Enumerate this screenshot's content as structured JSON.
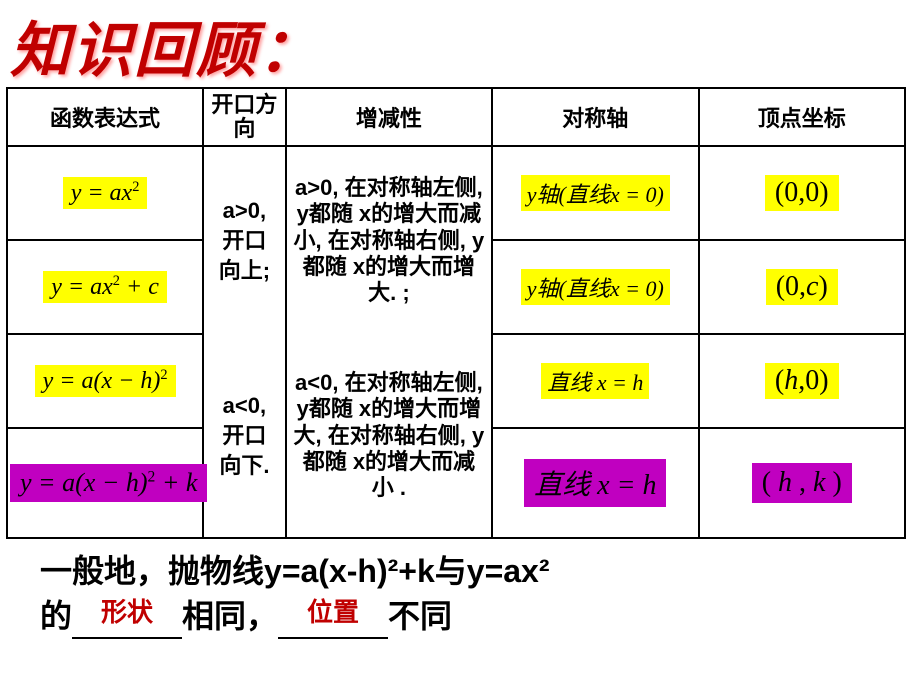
{
  "title": "知识回顾：",
  "headers": {
    "col1": "函数表达式",
    "col2": "开口方向",
    "col3": "增减性",
    "col4": "对称轴",
    "col5": "顶点坐标"
  },
  "direction": {
    "pos": "a>0,\n开口\n向上;",
    "neg": "a<0,\n开口\n向下."
  },
  "monotone": {
    "pos": "a>0, 在对称轴左侧, y都随 x的增大而减小, 在对称轴右侧, y都随  x的增大而增大. ;",
    "neg": "a<0, 在对称轴左侧, y都随 x的增大而增大, 在对称轴右侧, y都随  x的增大而减小  ."
  },
  "rows": [
    {
      "expr_html": "<span class='it'>y</span> = <span class='it'>a</span><span class='it'>x</span><sup>2</sup>",
      "axis_html": "<span class='it'>y</span>轴(直线<span class='it'>x</span> = 0)",
      "vertex_html": "(0,0)"
    },
    {
      "expr_html": "<span class='it'>y</span> = <span class='it'>a</span><span class='it'>x</span><sup>2</sup> + <span class='it'>c</span>",
      "axis_html": "<span class='it'>y</span>轴(直线<span class='it'>x</span> = 0)",
      "vertex_html": "(0,<span class='it'>c</span>)"
    },
    {
      "expr_html": "<span class='it'>y</span> = <span class='it'>a</span>(<span class='it'>x</span> − <span class='it'>h</span>)<sup>2</sup>",
      "axis_html": "直线 <span class='it'>x</span> = <span class='it'>h</span>",
      "vertex_html": "(<span class='it'>h</span>,0)"
    },
    {
      "expr_html": "<span class='it'>y</span> = <span class='it'>a</span>(<span class='it'>x</span> − <span class='it'>h</span>)<sup>2</sup> + <span class='it'>k</span>",
      "axis_html": "直线 <span class='it'>x</span> = <span class='it'>h</span>",
      "vertex_html": "( <span class='it'>h</span> , <span class='it'>k</span> )"
    }
  ],
  "row_styles": {
    "expr": [
      "hl-yellow",
      "hl-yellow",
      "hl-yellow",
      "hl-magenta"
    ],
    "axis": [
      "axis-yellow",
      "axis-yellow",
      "axis-yellow",
      "axis-magenta"
    ],
    "vertex": [
      "coord-yellow",
      "coord-yellow",
      "coord-yellow",
      "coord-magenta"
    ]
  },
  "bottom": {
    "line1_pre": "一般地，抛物线",
    "line1_formula": "y=a(x-h)²+k",
    "line1_mid": "与",
    "line1_formula2": "y=ax²",
    "line2_pre": "的",
    "blank1": "形状",
    "line2_mid": "相同，",
    "blank2": "位置",
    "line2_end": "不同"
  }
}
